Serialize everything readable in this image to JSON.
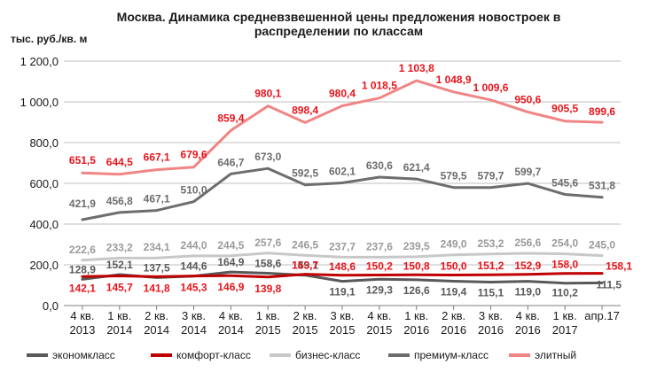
{
  "chart_data": {
    "type": "line",
    "title_line1": "Москва. Динамика средневзвешенной цены предложения новостроек в",
    "title_line2": "распределении по классам",
    "unit_label": "тыс. руб./кв. м",
    "ylim": [
      0,
      1200
    ],
    "yticks": [
      "0,0",
      "200,0",
      "400,0",
      "600,0",
      "800,0",
      "1 000,0",
      "1 200,0"
    ],
    "grid": true,
    "legend_position": "bottom",
    "categories": [
      [
        "4 кв.",
        "2013"
      ],
      [
        "1 кв.",
        "2014"
      ],
      [
        "2 кв.",
        "2014"
      ],
      [
        "3 кв.",
        "2014"
      ],
      [
        "4 кв.",
        "2014"
      ],
      [
        "1 кв.",
        "2015"
      ],
      [
        "2 кв.",
        "2015"
      ],
      [
        "3 кв.",
        "2015"
      ],
      [
        "4 кв.",
        "2015"
      ],
      [
        "1 кв.",
        "2016"
      ],
      [
        "2 кв.",
        "2016"
      ],
      [
        "3 кв.",
        "2016"
      ],
      [
        "4 кв.",
        "2016"
      ],
      [
        "1 кв.",
        "2017"
      ],
      [
        "апр.17",
        ""
      ]
    ],
    "series": [
      {
        "name": "экономкласс",
        "color": "#595959",
        "width": 3,
        "values": [
          128.9,
          152.1,
          137.5,
          144.6,
          164.9,
          158.6,
          149.1,
          119.1,
          129.3,
          126.6,
          119.4,
          115.1,
          119.0,
          110.2,
          111.5
        ],
        "labels": [
          "128,9",
          "152,1",
          "137,5",
          "144,6",
          "164,9",
          "158,6",
          "149,1",
          "119,1",
          "129,3",
          "126,6",
          "119,4",
          "115,1",
          "119,0",
          "110,2",
          "111,5"
        ],
        "label_color": "#595959"
      },
      {
        "name": "комфорт-класс",
        "color": "#c00000",
        "width": 3,
        "values": [
          142.1,
          145.7,
          141.8,
          145.3,
          146.9,
          139.8,
          153.7,
          148.6,
          150.2,
          150.8,
          150.0,
          151.2,
          152.9,
          158.0,
          158.1
        ],
        "labels": [
          "142,1",
          "145,7",
          "141,8",
          "145,3",
          "146,9",
          "139,8",
          "153,7",
          "148,6",
          "150,2",
          "150,8",
          "150,0",
          "151,2",
          "152,9",
          "158,0",
          "158,1"
        ],
        "label_color": "#e8141b"
      },
      {
        "name": "бизнес-класс",
        "color": "#c8c8c8",
        "width": 3,
        "values": [
          222.6,
          233.2,
          234.1,
          244.0,
          244.5,
          257.6,
          246.5,
          237.7,
          237.6,
          239.5,
          249.0,
          253.2,
          256.6,
          254.0,
          245.0
        ],
        "labels": [
          "222,6",
          "233,2",
          "234,1",
          "244,0",
          "244,5",
          "257,6",
          "246,5",
          "237,7",
          "237,6",
          "239,5",
          "249,0",
          "253,2",
          "256,6",
          "254,0",
          "245,0"
        ],
        "label_color": "#9a9a9a"
      },
      {
        "name": "премиум-класс",
        "color": "#6d6d6d",
        "width": 3,
        "values": [
          421.9,
          456.8,
          467.1,
          510.0,
          646.7,
          673.0,
          592.5,
          602.1,
          630.6,
          621.4,
          579.5,
          579.7,
          599.7,
          545.6,
          531.8
        ],
        "labels": [
          "421,9",
          "456,8",
          "467,1",
          "510,0",
          "646,7",
          "673,0",
          "592,5",
          "602,1",
          "630,6",
          "621,4",
          "579,5",
          "579,7",
          "599,7",
          "545,6",
          "531,8"
        ],
        "label_color": "#6d6d6d"
      },
      {
        "name": "элитный",
        "color": "#f08585",
        "width": 3,
        "values": [
          651.5,
          644.5,
          667.1,
          679.6,
          859.4,
          980.1,
          898.4,
          980.4,
          1018.5,
          1103.8,
          1048.9,
          1009.6,
          950.6,
          905.5,
          899.6
        ],
        "labels": [
          "651,5",
          "644,5",
          "667,1",
          "679,6",
          "859,4",
          "980,1",
          "898,4",
          "980,4",
          "1 018,5",
          "1 103,8",
          "1 048,9",
          "1 009,6",
          "950,6",
          "905,5",
          "899,6"
        ],
        "label_color": "#e8141b"
      }
    ]
  }
}
